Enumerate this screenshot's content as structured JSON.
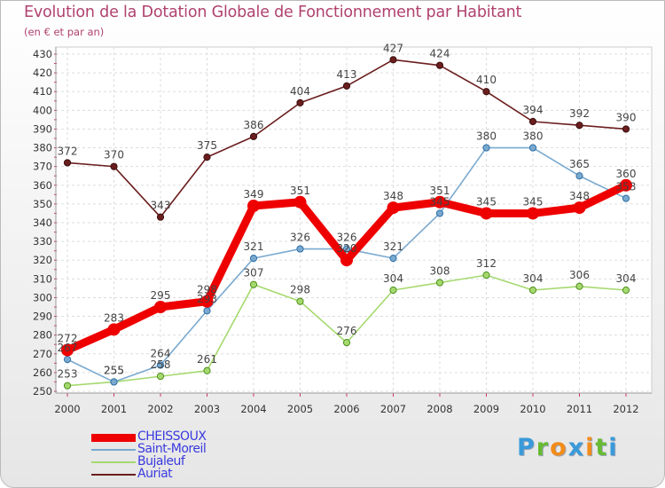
{
  "title": "Evolution de la Dotation Globale de Fonctionnement par Habitant",
  "subtitle": "(en € et par an)",
  "logo": {
    "text": "Proxiti",
    "letters": [
      {
        "ch": "P",
        "color": "#3a9ad9"
      },
      {
        "ch": "r",
        "color": "#66bb33"
      },
      {
        "ch": "o",
        "color": "#f28c1a"
      },
      {
        "ch": "x",
        "color": "#3a9ad9"
      },
      {
        "ch": "i",
        "color": "#f28c1a"
      },
      {
        "ch": "t",
        "color": "#66bb33"
      },
      {
        "ch": "i",
        "color": "#3a9ad9"
      }
    ]
  },
  "chart_data": {
    "type": "line",
    "title": "Evolution de la Dotation Globale de Fonctionnement par Habitant",
    "subtitle": "(en € et par an)",
    "xlabel": "",
    "ylabel": "",
    "x": [
      "2000",
      "2001",
      "2002",
      "2003",
      "2004",
      "2005",
      "2006",
      "2007",
      "2008",
      "2009",
      "2010",
      "2011",
      "2012"
    ],
    "ylim": [
      250,
      430
    ],
    "yticks": [
      250,
      260,
      270,
      280,
      290,
      300,
      310,
      320,
      330,
      340,
      350,
      360,
      370,
      380,
      390,
      400,
      410,
      420,
      430
    ],
    "grid": true,
    "legend_position": "bottom-left",
    "series": [
      {
        "name": "Auriat",
        "color": "#6b1e1e",
        "values": [
          372,
          370,
          343,
          375,
          386,
          404,
          413,
          427,
          424,
          410,
          394,
          392,
          390
        ]
      },
      {
        "name": "Bujaleuf",
        "color": "#a5d96e",
        "values": [
          253,
          255,
          258,
          261,
          307,
          298,
          276,
          304,
          308,
          312,
          304,
          306,
          304
        ]
      },
      {
        "name": "Saint-Moreil",
        "color": "#7aa9cf",
        "values": [
          267,
          255,
          264,
          293,
          321,
          326,
          326,
          321,
          345,
          380,
          380,
          365,
          353
        ]
      },
      {
        "name": "CHEISSOUX",
        "color": "#ee0000",
        "values": [
          272,
          283,
          295,
          298,
          349,
          351,
          320,
          348,
          351,
          345,
          345,
          348,
          360
        ]
      }
    ],
    "legend": [
      {
        "name": "CHEISSOUX",
        "color": "#ee0000",
        "label_color": "#3a3adf"
      },
      {
        "name": "Saint-Moreil",
        "color": "#7aa9cf",
        "label_color": "#3a3adf"
      },
      {
        "name": "Bujaleuf",
        "color": "#a5d96e",
        "label_color": "#3a3adf"
      },
      {
        "name": "Auriat",
        "color": "#6b1e1e",
        "label_color": "#3a3adf"
      }
    ]
  }
}
